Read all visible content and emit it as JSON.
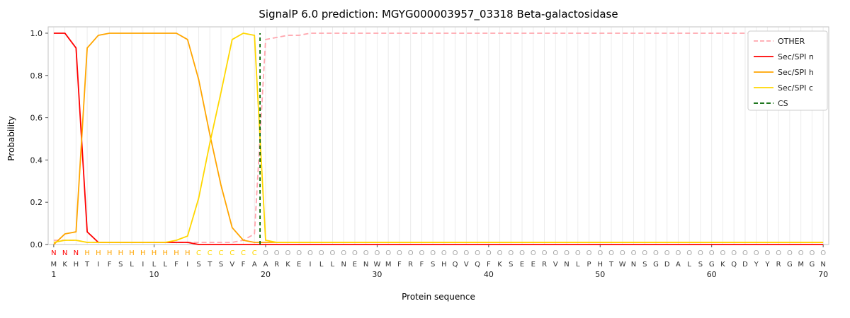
{
  "figure": {
    "title": "SignalP 6.0 prediction: MGYG000003957_03318 Beta-galactosidase"
  },
  "chart_data": {
    "type": "line",
    "title": "SignalP 6.0 prediction: MGYG000003957_03318 Beta-galactosidase",
    "xlabel": "Protein sequence",
    "ylabel": "Probability",
    "x_description": "residue positions 1-70 of the protein sequence",
    "xlim": [
      0.5,
      70.5
    ],
    "ylim": [
      0,
      1.03
    ],
    "x_ticks": [
      1,
      10,
      20,
      30,
      40,
      50,
      60,
      70
    ],
    "y_ticks": [
      0,
      0.2,
      0.4,
      0.6,
      0.8,
      1.0
    ],
    "grid": "vertical-per-residue",
    "legend_position": "upper-right",
    "series": [
      {
        "name": "OTHER",
        "color": "#ffa6ae",
        "style": "dashed",
        "values": [
          0.02,
          0.02,
          0.02,
          0.01,
          0.01,
          0.01,
          0.01,
          0.01,
          0.01,
          0.01,
          0.01,
          0.01,
          0.01,
          0.01,
          0.01,
          0.01,
          0.01,
          0.02,
          0.05,
          0.97,
          0.98,
          0.99,
          0.99,
          1.0,
          1.0,
          1.0,
          1.0,
          1.0,
          1.0,
          1.0,
          1.0,
          1.0,
          1.0,
          1.0,
          1.0,
          1.0,
          1.0,
          1.0,
          1.0,
          1.0,
          1.0,
          1.0,
          1.0,
          1.0,
          1.0,
          1.0,
          1.0,
          1.0,
          1.0,
          1.0,
          1.0,
          1.0,
          1.0,
          1.0,
          1.0,
          1.0,
          1.0,
          1.0,
          1.0,
          1.0,
          1.0,
          1.0,
          1.0,
          1.0,
          1.0,
          1.0,
          1.0,
          1.0,
          1.0,
          1.0
        ]
      },
      {
        "name": "Sec/SPI n",
        "color": "#ff0000",
        "style": "solid",
        "values": [
          1.0,
          1.0,
          0.93,
          0.06,
          0.01,
          0.01,
          0.01,
          0.01,
          0.01,
          0.01,
          0.01,
          0.01,
          0.01,
          0.0,
          0.0,
          0.0,
          0.0,
          0.0,
          0.0,
          0.0,
          0.0,
          0.0,
          0.0,
          0.0,
          0.0,
          0.0,
          0.0,
          0.0,
          0.0,
          0.0,
          0.0,
          0.0,
          0.0,
          0.0,
          0.0,
          0.0,
          0.0,
          0.0,
          0.0,
          0.0,
          0.0,
          0.0,
          0.0,
          0.0,
          0.0,
          0.0,
          0.0,
          0.0,
          0.0,
          0.0,
          0.0,
          0.0,
          0.0,
          0.0,
          0.0,
          0.0,
          0.0,
          0.0,
          0.0,
          0.0,
          0.0,
          0.0,
          0.0,
          0.0,
          0.0,
          0.0,
          0.0,
          0.0,
          0.0,
          0.0
        ]
      },
      {
        "name": "Sec/SPI h",
        "color": "#ffa500",
        "style": "solid",
        "values": [
          0.0,
          0.05,
          0.06,
          0.93,
          0.99,
          1.0,
          1.0,
          1.0,
          1.0,
          1.0,
          1.0,
          1.0,
          0.97,
          0.78,
          0.52,
          0.28,
          0.08,
          0.02,
          0.01,
          0.01,
          0.01,
          0.01,
          0.01,
          0.01,
          0.01,
          0.01,
          0.01,
          0.01,
          0.01,
          0.01,
          0.01,
          0.01,
          0.01,
          0.01,
          0.01,
          0.01,
          0.01,
          0.01,
          0.01,
          0.01,
          0.01,
          0.01,
          0.01,
          0.01,
          0.01,
          0.01,
          0.01,
          0.01,
          0.01,
          0.01,
          0.01,
          0.01,
          0.01,
          0.01,
          0.01,
          0.01,
          0.01,
          0.01,
          0.01,
          0.01,
          0.01,
          0.01,
          0.01,
          0.01,
          0.01,
          0.01,
          0.01,
          0.01,
          0.01,
          0.01
        ]
      },
      {
        "name": "Sec/SPI c",
        "color": "#ffd700",
        "style": "solid",
        "values": [
          0.01,
          0.02,
          0.02,
          0.01,
          0.01,
          0.01,
          0.01,
          0.01,
          0.01,
          0.01,
          0.01,
          0.02,
          0.04,
          0.22,
          0.48,
          0.72,
          0.97,
          1.0,
          0.99,
          0.02,
          0.01,
          0.01,
          0.01,
          0.01,
          0.01,
          0.01,
          0.01,
          0.01,
          0.01,
          0.01,
          0.01,
          0.01,
          0.01,
          0.01,
          0.01,
          0.01,
          0.01,
          0.01,
          0.01,
          0.01,
          0.01,
          0.01,
          0.01,
          0.01,
          0.01,
          0.01,
          0.01,
          0.01,
          0.01,
          0.01,
          0.01,
          0.01,
          0.01,
          0.01,
          0.01,
          0.01,
          0.01,
          0.01,
          0.01,
          0.01,
          0.01,
          0.01,
          0.01,
          0.01,
          0.01,
          0.01,
          0.01,
          0.01,
          0.01,
          0.01
        ]
      }
    ],
    "cs_marker": {
      "name": "CS",
      "position": 19.5,
      "color": "#006400",
      "style": "dashed-vertical"
    },
    "sequence": [
      "M",
      "K",
      "H",
      "T",
      "I",
      "F",
      "S",
      "L",
      "I",
      "L",
      "L",
      "F",
      "I",
      "S",
      "T",
      "S",
      "V",
      "F",
      "A",
      "A",
      "R",
      "K",
      "E",
      "I",
      "L",
      "L",
      "N",
      "E",
      "N",
      "W",
      "M",
      "F",
      "R",
      "F",
      "S",
      "H",
      "Q",
      "V",
      "Q",
      "F",
      "K",
      "S",
      "E",
      "E",
      "R",
      "V",
      "N",
      "L",
      "P",
      "H",
      "T",
      "W",
      "N",
      "S",
      "G",
      "D",
      "A",
      "L",
      "S",
      "G",
      "K",
      "Q",
      "D",
      "Y",
      "Y",
      "R",
      "G",
      "M",
      "G",
      "N"
    ],
    "region_labels": [
      "N",
      "N",
      "N",
      "H",
      "H",
      "H",
      "H",
      "H",
      "H",
      "H",
      "H",
      "H",
      "H",
      "C",
      "C",
      "C",
      "C",
      "C",
      "C",
      "O",
      "O",
      "O",
      "O",
      "O",
      "O",
      "O",
      "O",
      "O",
      "O",
      "O",
      "O",
      "O",
      "O",
      "O",
      "O",
      "O",
      "O",
      "O",
      "O",
      "O",
      "O",
      "O",
      "O",
      "O",
      "O",
      "O",
      "O",
      "O",
      "O",
      "O",
      "O",
      "O",
      "O",
      "O",
      "O",
      "O",
      "O",
      "O",
      "O",
      "O",
      "O",
      "O",
      "O",
      "O",
      "O",
      "O",
      "O",
      "O",
      "O",
      "O"
    ],
    "region_colors": {
      "N": "#ff0000",
      "H": "#ffa500",
      "C": "#ffd700",
      "O": "#a6a6a6"
    },
    "colors": {
      "grid": "#ececec",
      "spine": "#c3c3c3",
      "tick": "#4d4d4d",
      "text": "#1a1a1a",
      "sequence_text": "#333333",
      "background": "#ffffff"
    }
  }
}
